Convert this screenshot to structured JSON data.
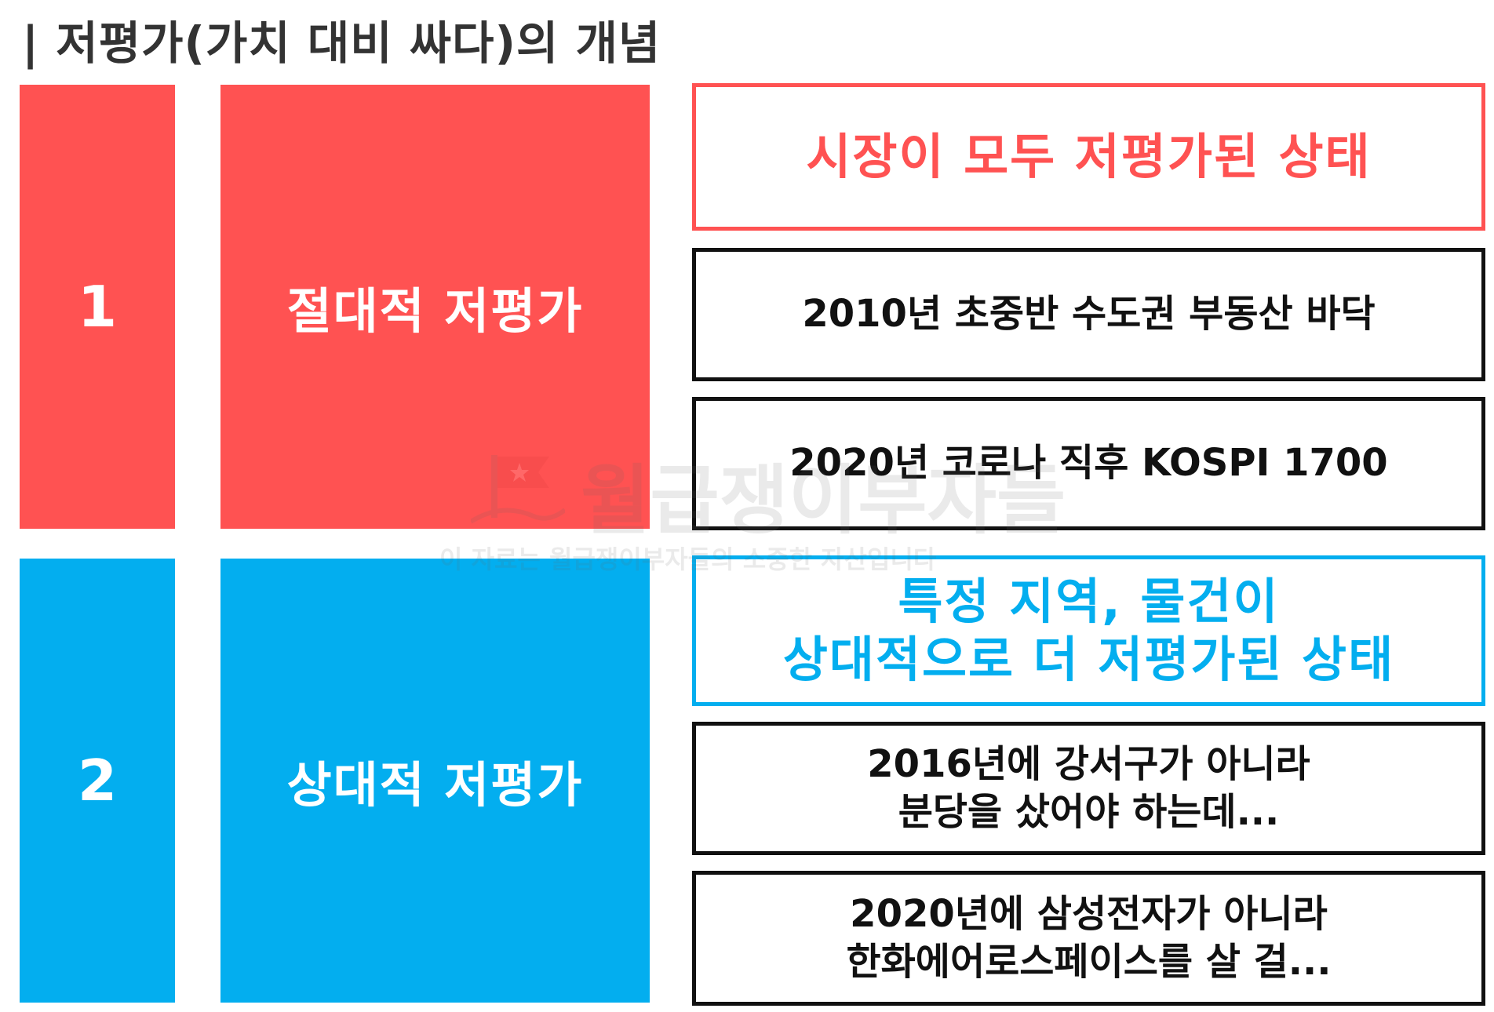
{
  "title": "| 저평가(가치 대비 싸다)의 개념",
  "colors": {
    "red": "#FF5252",
    "blue": "#03AEEF",
    "black": "#111111"
  },
  "sections": [
    {
      "number": "1",
      "label": "절대적 저평가",
      "heading": "시장이 모두 저평가된 상태",
      "examples": [
        "2010년 초중반 수도권 부동산 바닥",
        "2020년 코로나 직후 KOSPI 1700"
      ]
    },
    {
      "number": "2",
      "label": "상대적 저평가",
      "heading": "특정 지역, 물건이\n상대적으로 더 저평가된 상태",
      "examples": [
        "2016년에 강서구가 아니라\n분당을 샀어야 하는데...",
        "2020년에 삼성전자가 아니라\n한화에어로스페이스를 살 걸..."
      ]
    }
  ],
  "watermark": {
    "brand": "월급쟁이부자들",
    "notice": "이 자료는 월급쟁이부자들의 소중한 자산입니다"
  }
}
